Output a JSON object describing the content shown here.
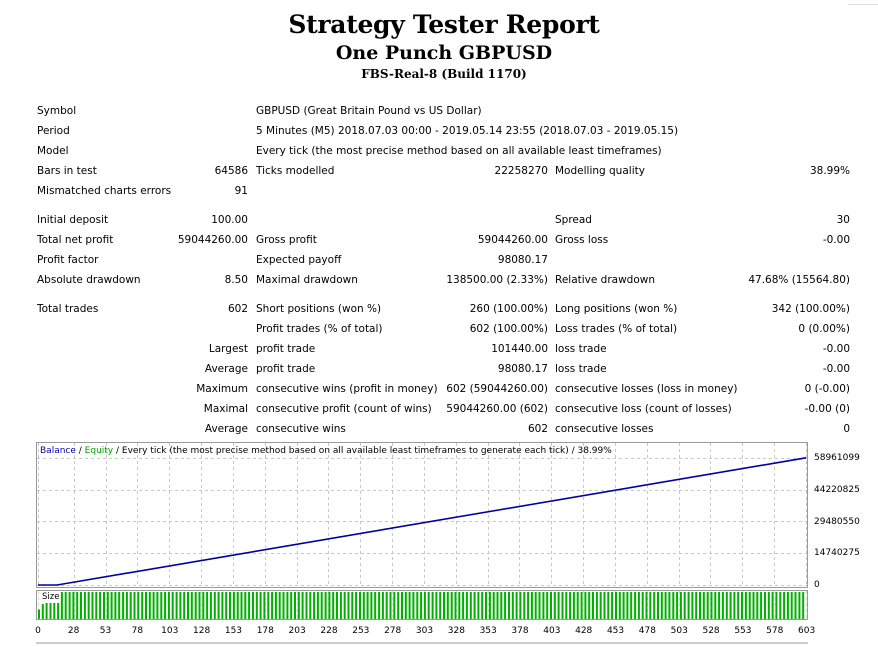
{
  "header": {
    "title": "Strategy Tester Report",
    "expert": "One Punch GBPUSD",
    "server": "FBS-Real-8 (Build 1170)"
  },
  "report": {
    "symbol_label": "Symbol",
    "symbol_value": "GBPUSD (Great Britain Pound vs US Dollar)",
    "period_label": "Period",
    "period_value": "5 Minutes (M5) 2018.07.03 00:00 - 2019.05.14 23:55 (2018.07.03 - 2019.05.15)",
    "model_label": "Model",
    "model_value": "Every tick (the most precise method based on all available least timeframes)",
    "bars_label": "Bars in test",
    "bars_value": "64586",
    "ticks_label": "Ticks modelled",
    "ticks_value": "22258270",
    "quality_label": "Modelling quality",
    "quality_value": "38.99%",
    "mismatch_label": "Mismatched charts errors",
    "mismatch_value": "91",
    "deposit_label": "Initial deposit",
    "deposit_value": "100.00",
    "spread_label": "Spread",
    "spread_value": "30",
    "netprofit_label": "Total net profit",
    "netprofit_value": "59044260.00",
    "grossprofit_label": "Gross profit",
    "grossprofit_value": "59044260.00",
    "grossloss_label": "Gross loss",
    "grossloss_value": "-0.00",
    "pf_label": "Profit factor",
    "pf_value": "",
    "payoff_label": "Expected payoff",
    "payoff_value": "98080.17",
    "absdd_label": "Absolute drawdown",
    "absdd_value": "8.50",
    "maxdd_label": "Maximal drawdown",
    "maxdd_value": "138500.00 (2.33%)",
    "reldd_label": "Relative drawdown",
    "reldd_value": "47.68% (15564.80)",
    "trades_label": "Total trades",
    "trades_value": "602",
    "short_label": "Short positions (won %)",
    "short_value": "260 (100.00%)",
    "long_label": "Long positions (won %)",
    "long_value": "342 (100.00%)",
    "pt_label": "Profit trades (% of total)",
    "pt_value": "602 (100.00%)",
    "lt_label": "Loss trades (% of total)",
    "lt_value": "0 (0.00%)",
    "largest_label": "Largest",
    "average_label": "Average",
    "maximum_label": "Maximum",
    "maximal_label": "Maximal",
    "average2_label": "Average",
    "profit_trade_label": "profit trade",
    "loss_trade_label": "loss trade",
    "largest_profit_value": "101440.00",
    "largest_loss_value": "-0.00",
    "average_profit_value": "98080.17",
    "average_loss_value": "-0.00",
    "cw_money_label": "consecutive wins (profit in money)",
    "cw_money_value": "602 (59044260.00)",
    "cl_money_label": "consecutive losses (loss in money)",
    "cl_money_value": "0 (-0.00)",
    "cp_count_label": "consecutive profit (count of wins)",
    "cp_count_value": "59044260.00 (602)",
    "cl_count_label": "consecutive loss (count of losses)",
    "cl_count_value": "-0.00 (0)",
    "avg_wins_label": "consecutive wins",
    "avg_wins_value": "602",
    "avg_losses_label": "consecutive losses",
    "avg_losses_value": "0"
  },
  "chart_data": {
    "type": "line",
    "legend_balance": "Balance",
    "legend_sep1": " / ",
    "legend_equity": "Equity",
    "legend_rest": " / Every tick (the most precise method based on all available least timeframes to generate each tick) / 38.99%",
    "y_ticks": [
      "58961099",
      "44220825",
      "29480550",
      "14740275",
      "0"
    ],
    "x_ticks": [
      "0",
      "28",
      "53",
      "78",
      "103",
      "128",
      "153",
      "178",
      "203",
      "228",
      "253",
      "278",
      "303",
      "328",
      "353",
      "378",
      "403",
      "428",
      "453",
      "478",
      "503",
      "528",
      "553",
      "578",
      "603"
    ],
    "ylim": [
      0,
      58961099
    ],
    "xlim": [
      0,
      603
    ],
    "series": [
      {
        "name": "Balance",
        "color": "#0000a0",
        "x": [
          0,
          15,
          603
        ],
        "values": [
          100,
          100,
          59044260
        ]
      }
    ],
    "size_label": "Size",
    "size_bar_color": "#00b000",
    "trade_count": 602
  }
}
